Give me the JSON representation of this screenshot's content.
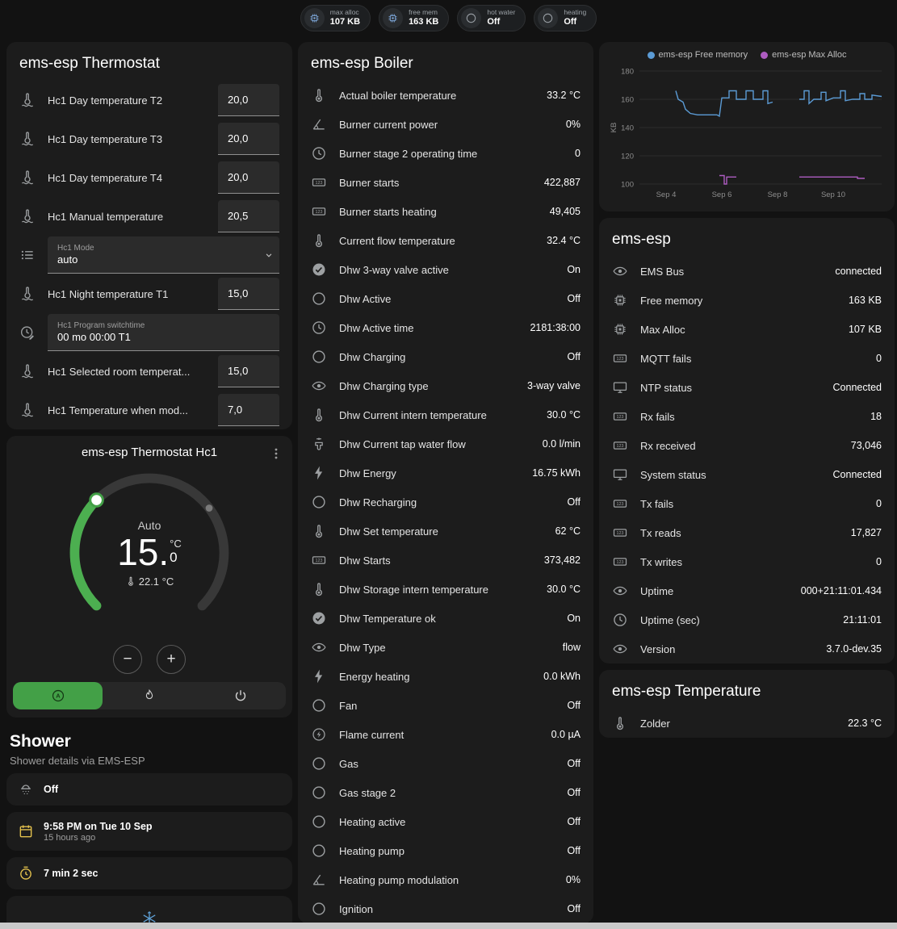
{
  "header": {
    "chips": [
      {
        "icon": "chip",
        "label": "max alloc",
        "value": "107 KB",
        "icon_color": "#7da6d8"
      },
      {
        "icon": "chip",
        "label": "free mem",
        "value": "163 KB",
        "icon_color": "#7da6d8"
      },
      {
        "icon": "circle",
        "label": "hot water",
        "value": "Off",
        "icon_color": "#9aa0a6"
      },
      {
        "icon": "circle",
        "label": "heating",
        "value": "Off",
        "icon_color": "#9aa0a6"
      }
    ]
  },
  "thermostat": {
    "title": "ems-esp Thermostat",
    "rows": [
      {
        "icon": "thermo-water",
        "label": "Hc1 Day temperature T2",
        "value": "20,0",
        "type": "number"
      },
      {
        "icon": "thermo-water",
        "label": "Hc1 Day temperature T3",
        "value": "20,0",
        "type": "number"
      },
      {
        "icon": "thermo-water",
        "label": "Hc1 Day temperature T4",
        "value": "20,0",
        "type": "number"
      },
      {
        "icon": "thermo-water",
        "label": "Hc1 Manual temperature",
        "value": "20,5",
        "type": "number"
      },
      {
        "icon": "list",
        "label": "Hc1 Mode",
        "value": "auto",
        "type": "select"
      },
      {
        "icon": "thermo-water",
        "label": "Hc1 Night temperature T1",
        "value": "15,0",
        "type": "number"
      },
      {
        "icon": "clock-edit",
        "label": "Hc1 Program switchtime",
        "value": "00 mo 00:00 T1",
        "type": "text"
      },
      {
        "icon": "thermo-water",
        "label": "Hc1 Selected room temperat...",
        "value": "15,0",
        "type": "number"
      },
      {
        "icon": "thermo-water",
        "label": "Hc1 Temperature when mod...",
        "value": "7,0",
        "type": "number"
      }
    ]
  },
  "dial": {
    "title": "ems-esp Thermostat Hc1",
    "mode": "Auto",
    "temp_main": "15.",
    "temp_unit": "°C",
    "temp_decimal": "0",
    "current_label": "22.1 °C"
  },
  "shower": {
    "title": "Shower",
    "subtitle": "Shower details via EMS-ESP",
    "cards": [
      {
        "icon": "shower",
        "icon_color": "#9da0a2",
        "value": "Off",
        "sub": ""
      },
      {
        "icon": "calendar",
        "icon_color": "#e2c04d",
        "value": "9:58 PM on Tue 10 Sep",
        "sub": "15 hours ago"
      },
      {
        "icon": "timer",
        "icon_color": "#e2c04d",
        "value": "7 min 2 sec",
        "sub": ""
      },
      {
        "icon": "snow",
        "icon_color": "#5e9fd4",
        "value": "",
        "sub": ""
      }
    ]
  },
  "boiler": {
    "title": "ems-esp Boiler",
    "rows": [
      {
        "icon": "thermo",
        "label": "Actual boiler temperature",
        "value": "33.2 °C"
      },
      {
        "icon": "angle",
        "label": "Burner current power",
        "value": "0%"
      },
      {
        "icon": "clock",
        "label": "Burner stage 2 operating time",
        "value": "0"
      },
      {
        "icon": "counter",
        "label": "Burner starts",
        "value": "422,887"
      },
      {
        "icon": "counter",
        "label": "Burner starts heating",
        "value": "49,405"
      },
      {
        "icon": "thermo",
        "label": "Current flow temperature",
        "value": "32.4 °C"
      },
      {
        "icon": "check-circle",
        "label": "Dhw 3-way valve active",
        "value": "On"
      },
      {
        "icon": "circle",
        "label": "Dhw Active",
        "value": "Off"
      },
      {
        "icon": "clock",
        "label": "Dhw Active time",
        "value": "2181:38:00"
      },
      {
        "icon": "circle",
        "label": "Dhw Charging",
        "value": "Off"
      },
      {
        "icon": "eye",
        "label": "Dhw Charging type",
        "value": "3-way valve"
      },
      {
        "icon": "thermo",
        "label": "Dhw Current intern temperature",
        "value": "30.0 °C"
      },
      {
        "icon": "faucet",
        "label": "Dhw Current tap water flow",
        "value": "0.0 l/min"
      },
      {
        "icon": "flash",
        "label": "Dhw Energy",
        "value": "16.75 kWh"
      },
      {
        "icon": "circle",
        "label": "Dhw Recharging",
        "value": "Off"
      },
      {
        "icon": "thermo",
        "label": "Dhw Set temperature",
        "value": "62 °C"
      },
      {
        "icon": "counter",
        "label": "Dhw Starts",
        "value": "373,482"
      },
      {
        "icon": "thermo",
        "label": "Dhw Storage intern temperature",
        "value": "30.0 °C"
      },
      {
        "icon": "check-circle",
        "label": "Dhw Temperature ok",
        "value": "On"
      },
      {
        "icon": "eye",
        "label": "Dhw Type",
        "value": "flow"
      },
      {
        "icon": "flash",
        "label": "Energy heating",
        "value": "0.0 kWh"
      },
      {
        "icon": "circle",
        "label": "Fan",
        "value": "Off"
      },
      {
        "icon": "current",
        "label": "Flame current",
        "value": "0.0 µA"
      },
      {
        "icon": "circle",
        "label": "Gas",
        "value": "Off"
      },
      {
        "icon": "circle",
        "label": "Gas stage 2",
        "value": "Off"
      },
      {
        "icon": "circle",
        "label": "Heating active",
        "value": "Off"
      },
      {
        "icon": "circle",
        "label": "Heating pump",
        "value": "Off"
      },
      {
        "icon": "angle",
        "label": "Heating pump modulation",
        "value": "0%"
      },
      {
        "icon": "circle",
        "label": "Ignition",
        "value": "Off"
      }
    ]
  },
  "emsesp": {
    "title": "ems-esp",
    "rows": [
      {
        "icon": "eye",
        "label": "EMS Bus",
        "value": "connected"
      },
      {
        "icon": "chip",
        "label": "Free memory",
        "value": "163 KB"
      },
      {
        "icon": "chip",
        "label": "Max Alloc",
        "value": "107 KB"
      },
      {
        "icon": "counter",
        "label": "MQTT fails",
        "value": "0"
      },
      {
        "icon": "monitor",
        "label": "NTP status",
        "value": "Connected"
      },
      {
        "icon": "counter",
        "label": "Rx fails",
        "value": "18"
      },
      {
        "icon": "counter",
        "label": "Rx received",
        "value": "73,046"
      },
      {
        "icon": "monitor",
        "label": "System status",
        "value": "Connected"
      },
      {
        "icon": "counter",
        "label": "Tx fails",
        "value": "0"
      },
      {
        "icon": "counter",
        "label": "Tx reads",
        "value": "17,827"
      },
      {
        "icon": "counter",
        "label": "Tx writes",
        "value": "0"
      },
      {
        "icon": "eye",
        "label": "Uptime",
        "value": "000+21:11:01.434"
      },
      {
        "icon": "clock",
        "label": "Uptime (sec)",
        "value": "21:11:01"
      },
      {
        "icon": "eye",
        "label": "Version",
        "value": "3.7.0-dev.35"
      }
    ]
  },
  "temperature": {
    "title": "ems-esp Temperature",
    "rows": [
      {
        "icon": "thermo",
        "label": "Zolder",
        "value": "22.3 °C"
      }
    ]
  },
  "chart_data": {
    "type": "line",
    "title": "",
    "ylabel": "KB",
    "ylim": [
      100,
      180
    ],
    "yticks": [
      100,
      120,
      140,
      160,
      180
    ],
    "xticks": [
      {
        "pos": 11,
        "label": "Sep 4"
      },
      {
        "pos": 34,
        "label": "Sep 6"
      },
      {
        "pos": 57,
        "label": "Sep 8"
      },
      {
        "pos": 80,
        "label": "Sep 10"
      }
    ],
    "grid": "horizontal",
    "legend_position": "top",
    "series": [
      {
        "name": "ems-esp Free memory",
        "color": "#5b9bd5",
        "segments": [
          [
            [
              15,
              166
            ],
            [
              16,
              160
            ],
            [
              18,
              158
            ],
            [
              19,
              153
            ],
            [
              21,
              150
            ],
            [
              24,
              149
            ],
            [
              32,
              149
            ],
            [
              33,
              148
            ],
            [
              34,
              161
            ],
            [
              37,
              161
            ],
            [
              37,
              166
            ],
            [
              40,
              166
            ],
            [
              40,
              160
            ],
            [
              44,
              160
            ],
            [
              44,
              166
            ],
            [
              47,
              166
            ],
            [
              47,
              160
            ],
            [
              51,
              160
            ],
            [
              51,
              166
            ],
            [
              53,
              166
            ],
            [
              53,
              157
            ],
            [
              55,
              158
            ]
          ],
          [
            [
              66,
              160
            ],
            [
              68,
              160
            ],
            [
              68,
              166
            ],
            [
              70,
              166
            ],
            [
              70,
              157
            ],
            [
              72,
              160
            ],
            [
              75,
              160
            ],
            [
              75,
              165
            ],
            [
              77,
              165
            ],
            [
              77,
              159
            ],
            [
              80,
              161
            ],
            [
              83,
              161
            ],
            [
              83,
              166
            ],
            [
              85,
              166
            ],
            [
              85,
              159
            ],
            [
              88,
              160
            ],
            [
              91,
              160
            ],
            [
              91,
              164
            ],
            [
              93,
              164
            ],
            [
              93,
              160
            ],
            [
              96,
              160
            ],
            [
              96,
              163
            ],
            [
              100,
              162
            ]
          ]
        ]
      },
      {
        "name": "ems-esp Max Alloc",
        "color": "#ad5cc0",
        "segments": [
          [
            [
              33,
              106
            ],
            [
              35,
              106
            ],
            [
              35,
              100
            ],
            [
              36,
              100
            ],
            [
              36,
              105
            ],
            [
              40,
              105
            ]
          ],
          [
            [
              66,
              105
            ],
            [
              90,
              105
            ],
            [
              90,
              104
            ],
            [
              93,
              104
            ]
          ]
        ]
      }
    ]
  }
}
